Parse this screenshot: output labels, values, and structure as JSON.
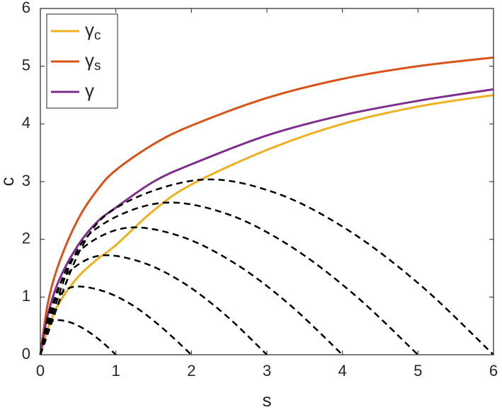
{
  "chart_data": {
    "type": "line",
    "xlabel": "s",
    "ylabel": "c",
    "xlim": [
      0,
      6
    ],
    "ylim": [
      0,
      6
    ],
    "xticks": [
      0,
      1,
      2,
      3,
      4,
      5,
      6
    ],
    "yticks": [
      0,
      1,
      2,
      3,
      4,
      5,
      6
    ],
    "legend": "top-left",
    "series": [
      {
        "name": "γc",
        "color": "#EDB120",
        "style": "solid",
        "x": [
          0,
          0.1,
          0.25,
          0.5,
          0.75,
          1,
          1.5,
          2,
          3,
          4,
          5,
          6
        ],
        "values": [
          0,
          0.45,
          0.9,
          1.35,
          1.65,
          1.9,
          2.5,
          2.95,
          3.55,
          4.0,
          4.3,
          4.5
        ]
      },
      {
        "name": "γs",
        "color": "#D95319",
        "style": "solid",
        "x": [
          0,
          0.1,
          0.25,
          0.5,
          0.75,
          1,
          1.5,
          2,
          3,
          4,
          5,
          6
        ],
        "values": [
          0,
          0.9,
          1.6,
          2.35,
          2.85,
          3.2,
          3.65,
          3.97,
          4.45,
          4.78,
          5.0,
          5.15
        ]
      },
      {
        "name": "γ",
        "color": "#7E2F8E",
        "style": "solid",
        "x": [
          0,
          0.1,
          0.25,
          0.5,
          0.75,
          1,
          1.5,
          2,
          3,
          4,
          5,
          6
        ],
        "values": [
          0,
          0.7,
          1.3,
          1.9,
          2.3,
          2.55,
          3.0,
          3.3,
          3.8,
          4.15,
          4.4,
          4.6
        ]
      },
      {
        "color": "#000000",
        "style": "dashed",
        "x": [
          0,
          0.05,
          0.1,
          0.2,
          0.4,
          0.6,
          0.8,
          1
        ],
        "values": [
          0,
          0.36,
          0.51,
          0.6,
          0.56,
          0.43,
          0.24,
          0
        ]
      },
      {
        "color": "#000000",
        "style": "dashed",
        "x": [
          0,
          0.11,
          0.23,
          0.45,
          0.84,
          1.23,
          1.61,
          2
        ],
        "values": [
          0,
          0.71,
          1.0,
          1.18,
          1.1,
          0.85,
          0.47,
          0
        ]
      },
      {
        "color": "#000000",
        "style": "dashed",
        "x": [
          0,
          0.2,
          0.4,
          0.8,
          1.35,
          1.9,
          2.45,
          3
        ],
        "values": [
          0,
          1.03,
          1.46,
          1.72,
          1.6,
          1.24,
          0.69,
          0
        ]
      },
      {
        "color": "#000000",
        "style": "dashed",
        "x": [
          0,
          0.29,
          0.58,
          1.15,
          1.86,
          2.58,
          3.29,
          4
        ],
        "values": [
          0,
          1.32,
          1.87,
          2.2,
          2.05,
          1.58,
          0.88,
          0
        ]
      },
      {
        "color": "#000000",
        "style": "dashed",
        "x": [
          0,
          0.4,
          0.8,
          1.6,
          2.45,
          3.3,
          4.15,
          5
        ],
        "values": [
          0,
          1.58,
          2.24,
          2.63,
          2.45,
          1.89,
          1.05,
          0
        ]
      },
      {
        "color": "#000000",
        "style": "dashed",
        "x": [
          0,
          0.53,
          1.05,
          2.1,
          3.08,
          4.05,
          5.03,
          6
        ],
        "values": [
          0,
          1.82,
          2.58,
          3.03,
          2.82,
          2.18,
          1.21,
          0
        ]
      }
    ]
  }
}
